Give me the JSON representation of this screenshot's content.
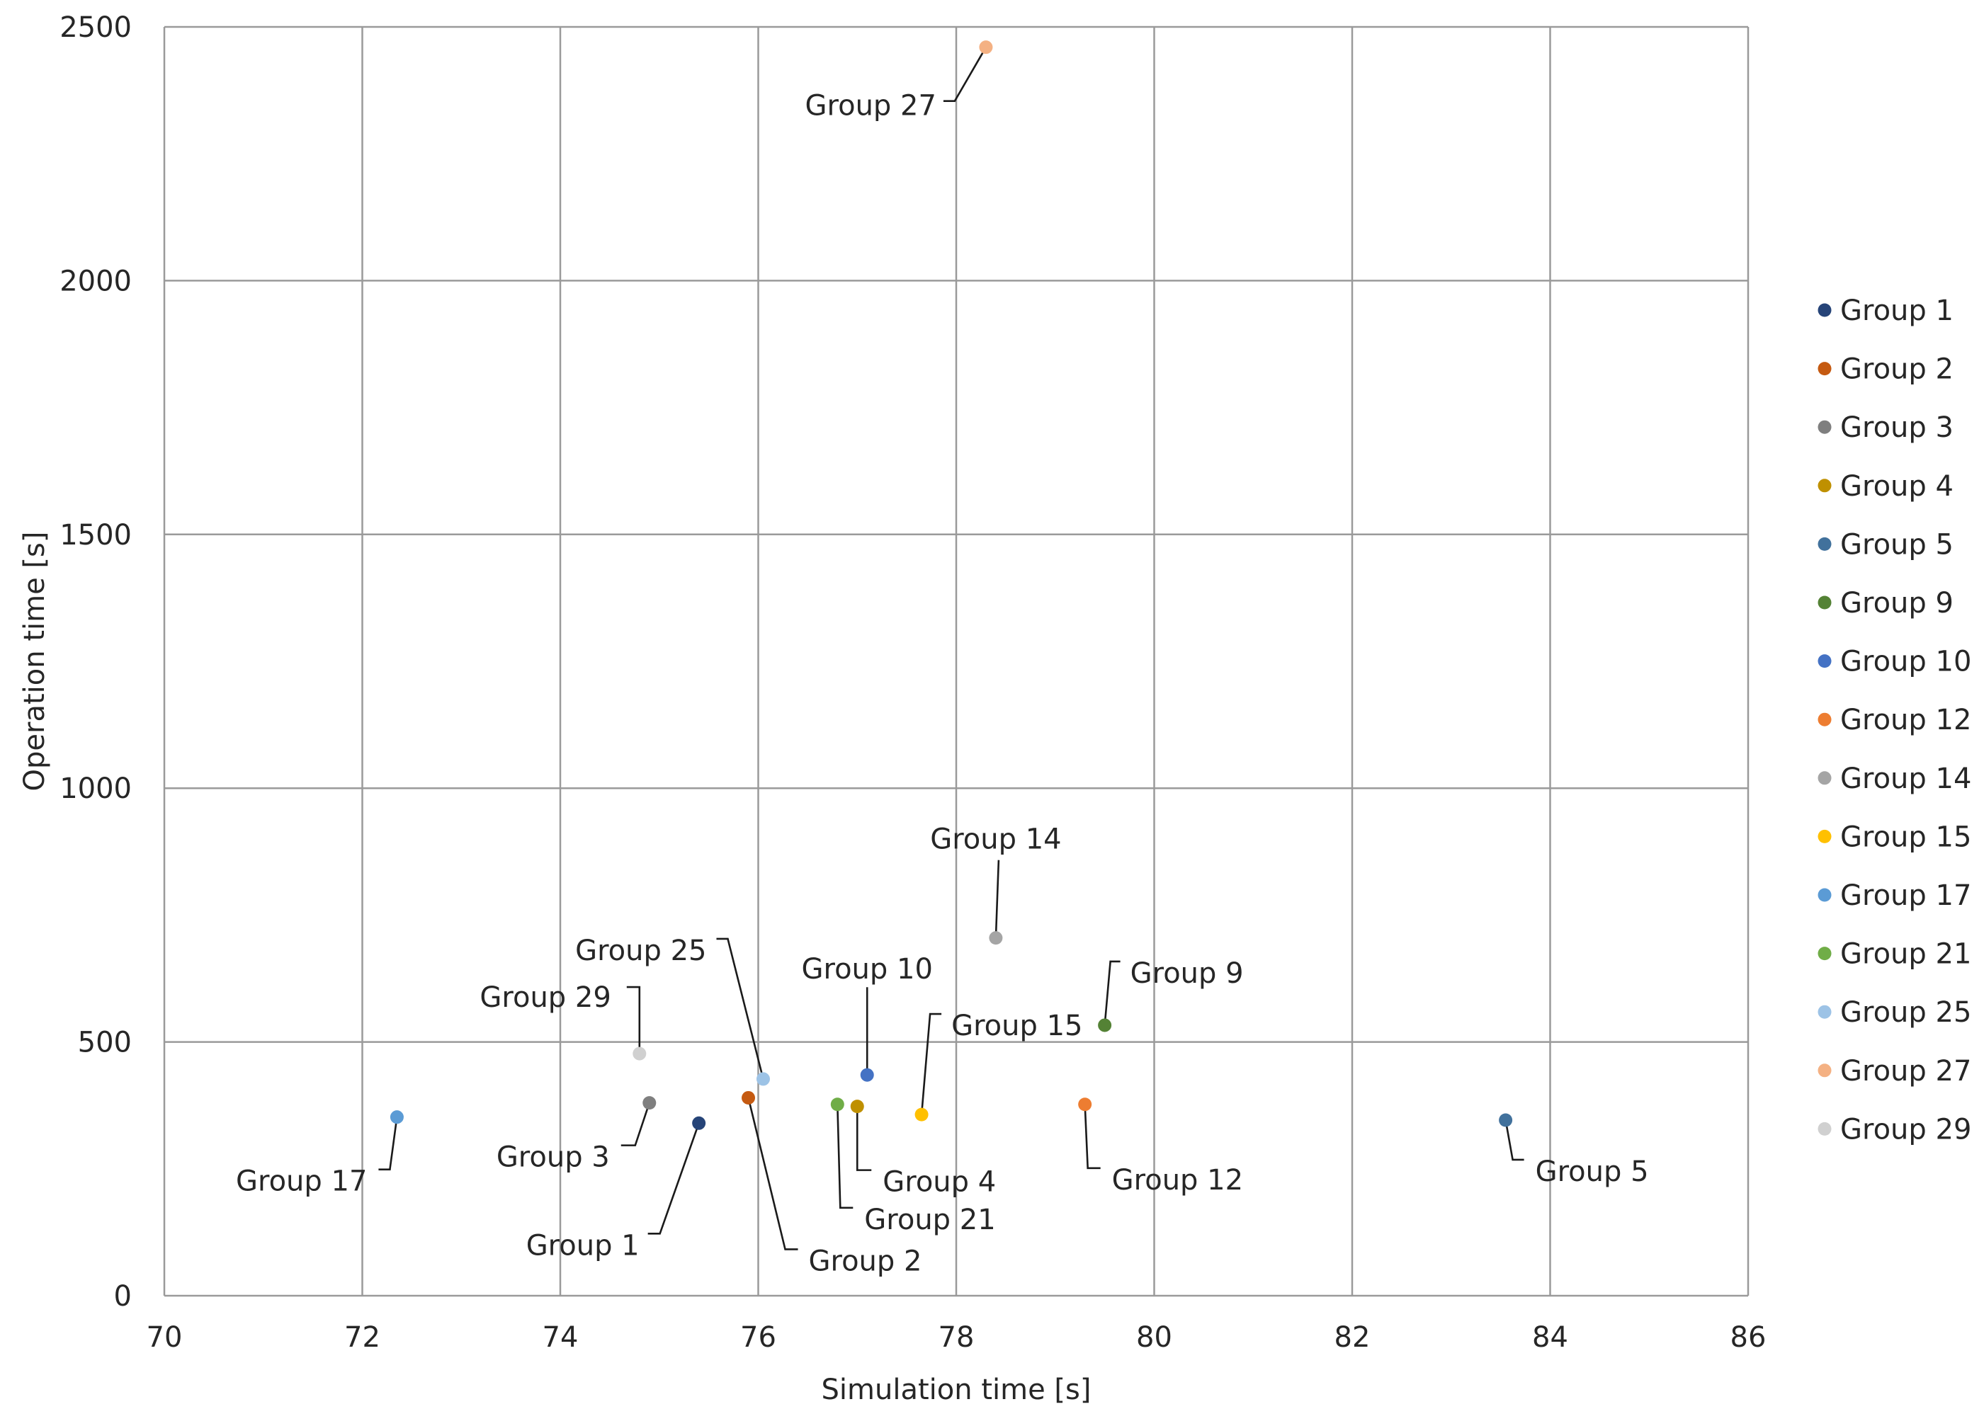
{
  "chart_data": {
    "type": "scatter",
    "title": "",
    "xlabel": "Simulation time [s]",
    "ylabel": "Operation time [s]",
    "xlim": [
      70,
      86
    ],
    "ylim": [
      0,
      2500
    ],
    "xticks": [
      70,
      72,
      74,
      76,
      78,
      80,
      82,
      84,
      86
    ],
    "yticks": [
      0,
      500,
      1000,
      1500,
      2000,
      2500
    ],
    "grid": true,
    "legend_position": "right",
    "series": [
      {
        "name": "Group 1",
        "x": 75.4,
        "y": 340,
        "color": "#264478"
      },
      {
        "name": "Group 2",
        "x": 75.9,
        "y": 390,
        "color": "#C55A11"
      },
      {
        "name": "Group 3",
        "x": 74.9,
        "y": 380,
        "color": "#7F7F7F"
      },
      {
        "name": "Group 4",
        "x": 77.0,
        "y": 373,
        "color": "#BF9000"
      },
      {
        "name": "Group 5",
        "x": 83.55,
        "y": 346,
        "color": "#41719C"
      },
      {
        "name": "Group 9",
        "x": 79.5,
        "y": 533,
        "color": "#548235"
      },
      {
        "name": "Group 10",
        "x": 77.1,
        "y": 435,
        "color": "#4472C4"
      },
      {
        "name": "Group 12",
        "x": 79.3,
        "y": 377,
        "color": "#ED7D31"
      },
      {
        "name": "Group 14",
        "x": 78.4,
        "y": 705,
        "color": "#A5A5A5"
      },
      {
        "name": "Group 15",
        "x": 77.65,
        "y": 357,
        "color": "#FFC000"
      },
      {
        "name": "Group 17",
        "x": 72.35,
        "y": 352,
        "color": "#5B9BD5"
      },
      {
        "name": "Group 21",
        "x": 76.8,
        "y": 377,
        "color": "#70AD47"
      },
      {
        "name": "Group 25",
        "x": 76.05,
        "y": 427,
        "color": "#9DC3E6"
      },
      {
        "name": "Group 27",
        "x": 78.3,
        "y": 2460,
        "color": "#F4B183"
      },
      {
        "name": "Group 29",
        "x": 74.8,
        "y": 477,
        "color": "#D0D0D0"
      }
    ]
  }
}
